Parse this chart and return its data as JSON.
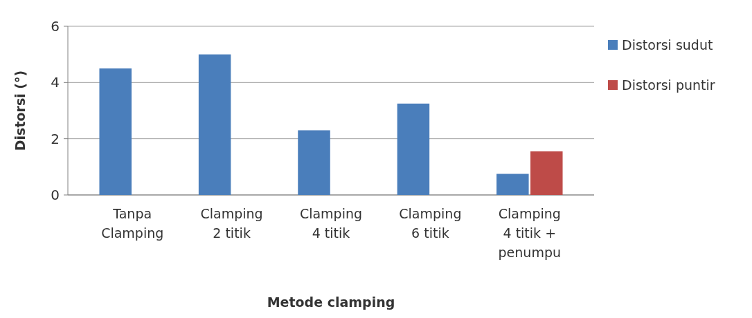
{
  "chart_data": {
    "type": "bar",
    "xlabel": "Metode clamping",
    "ylabel": "Distorsi (°)",
    "categories": [
      "Tanpa Clamping",
      "Clamping 2 titik",
      "Clamping 4 titik",
      "Clamping 6 titik",
      "Clamping 4 titik + penumpu"
    ],
    "series": [
      {
        "name": "Distorsi sudut",
        "color": "#4a7ebb",
        "values": [
          4.5,
          5.0,
          2.3,
          3.25,
          0.75
        ]
      },
      {
        "name": "Distorsi puntir",
        "color": "#be4b48",
        "values": [
          0,
          0,
          0,
          0,
          1.55
        ]
      }
    ],
    "ylim": [
      0,
      6
    ],
    "yticks": [
      0,
      2,
      4,
      6
    ],
    "grid": "y",
    "legend": "right"
  }
}
